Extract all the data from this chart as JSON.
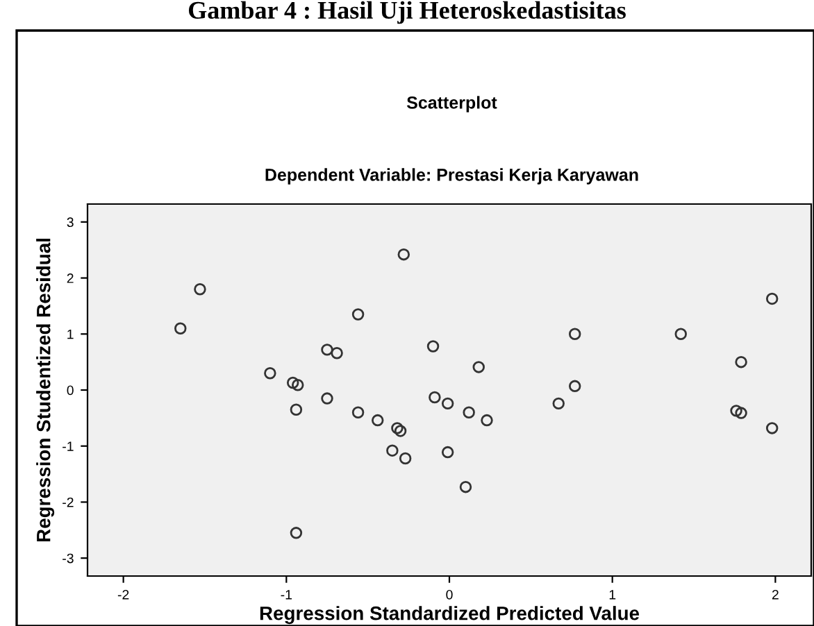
{
  "chart_data": {
    "type": "scatter",
    "title": "Scatterplot",
    "subtitle": "Dependent Variable: Prestasi Kerja Karyawan",
    "xlabel": "Regression Standardized Predicted Value",
    "ylabel": "Regression Studentized Residual",
    "annotations": [
      "Gambar 4 : Hasil Uji Heteroskedastisitas"
    ],
    "x": [
      -1.65,
      -1.53,
      -1.1,
      -0.96,
      -0.93,
      -0.94,
      -0.94,
      -0.75,
      -0.75,
      -0.69,
      -0.56,
      -0.56,
      -0.44,
      -0.35,
      -0.32,
      -0.3,
      -0.28,
      -0.27,
      -0.1,
      -0.09,
      -0.01,
      -0.01,
      0.1,
      0.12,
      0.18,
      0.23,
      0.67,
      0.77,
      0.77,
      1.42,
      1.76,
      1.79,
      1.79,
      1.98,
      1.98
    ],
    "values": [
      1.1,
      1.8,
      0.3,
      0.13,
      0.09,
      -0.35,
      -2.55,
      0.72,
      -0.15,
      0.66,
      1.35,
      -0.4,
      -0.54,
      -1.08,
      -0.68,
      -0.73,
      2.42,
      -1.22,
      0.78,
      -0.13,
      -0.24,
      -1.11,
      -1.73,
      -0.4,
      0.41,
      -0.54,
      -0.24,
      1.0,
      0.07,
      1.0,
      -0.37,
      -0.41,
      0.5,
      1.63,
      -0.68
    ],
    "color": "#333333",
    "marker": "circle",
    "xlim": [
      -2.22,
      2.22
    ],
    "ylim": [
      -3.32,
      3.32
    ],
    "xticks": [
      -2,
      -1,
      0,
      1,
      2
    ],
    "yticks": [
      -3,
      -2,
      -1,
      0,
      1,
      2,
      3
    ],
    "grid": false
  }
}
